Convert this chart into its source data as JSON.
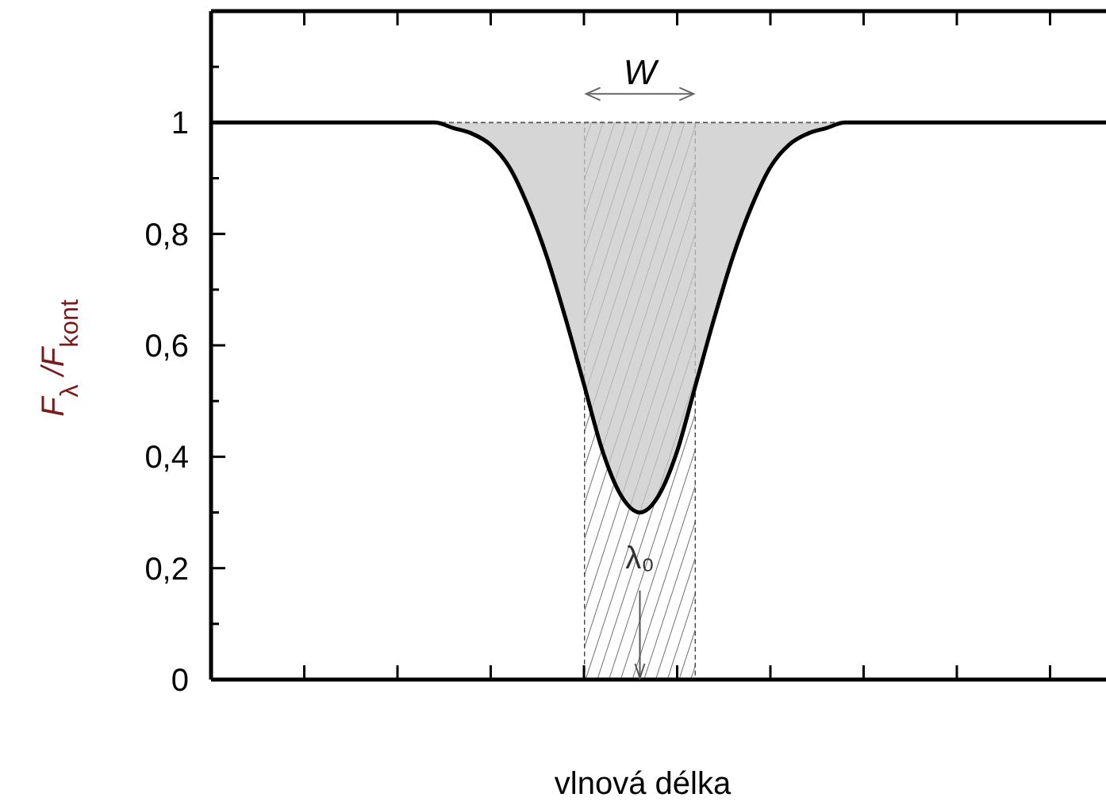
{
  "chart_data": {
    "type": "line",
    "xlabel": "vlnová délka",
    "ylabel": "F$_{λ}$ /F$_{kont}$",
    "categories": [
      null,
      null,
      null,
      null,
      null,
      null,
      null,
      null,
      null,
      null,
      null,
      null,
      null,
      null,
      null,
      null,
      null,
      null,
      null,
      null,
      null,
      null,
      null,
      null,
      null,
      null,
      null,
      null,
      null,
      null,
      null,
      null,
      null,
      null,
      null,
      null,
      null,
      null,
      null,
      null,
      null,
      null,
      null,
      null,
      null,
      null,
      null,
      null,
      null
    ],
    "series": [
      {
        "color": "#000000",
        "values": [
          1,
          1,
          1,
          1,
          1,
          1,
          1,
          1,
          1,
          1,
          1,
          1,
          1,
          0.99,
          0.98,
          0.96,
          0.92,
          0.85,
          0.76,
          0.65,
          0.53,
          0.41,
          0.33,
          0.3,
          0.33,
          0.41,
          0.53,
          0.65,
          0.76,
          0.85,
          0.92,
          0.96,
          0.98,
          0.99,
          1,
          1,
          1,
          1,
          1,
          1,
          1,
          1,
          1,
          1,
          1,
          1,
          1,
          1,
          1
        ],
        "lower": [
          1,
          1,
          1,
          1,
          1,
          1,
          1,
          1,
          1,
          1,
          1,
          1,
          1,
          0.99,
          0.98,
          0.96,
          0.92,
          0.85,
          0.76,
          0.65,
          0.53,
          0.41,
          0.33,
          0.3,
          0.33,
          0.41,
          0.53,
          0.65,
          0.76,
          0.85,
          0.92,
          0.96,
          0.98,
          0.99,
          1,
          1,
          1,
          1,
          1,
          1,
          1,
          1,
          1,
          1,
          1,
          1,
          1,
          1,
          1
        ],
        "upper": [
          1,
          1,
          1,
          1,
          1,
          1,
          1,
          1,
          1,
          1,
          1,
          1,
          1,
          1,
          1,
          1,
          1,
          1,
          1,
          1,
          1,
          1,
          1,
          1,
          1,
          1,
          1,
          1,
          1,
          1,
          1,
          1,
          1,
          1,
          1,
          1,
          1,
          1,
          1,
          1,
          1,
          1,
          1,
          1,
          1,
          1,
          1,
          1,
          1
        ]
      }
    ],
    "ylim": [
      0,
      1.2
    ],
    "yticks": [
      0,
      {
        "value": 0.1,
        "label": null
      },
      {
        "value": 0.2,
        "label": "0,2"
      },
      {
        "value": 0.3,
        "label": null
      },
      {
        "value": 0.4,
        "label": "0,4"
      },
      {
        "value": 0.5,
        "label": null
      },
      {
        "value": 0.6,
        "label": "0,6"
      },
      {
        "value": 0.7,
        "label": null
      },
      {
        "value": 0.8,
        "label": "0,8"
      },
      {
        "value": 0.9,
        "label": null
      },
      1,
      {
        "value": 1.1,
        "label": null
      }
    ],
    "tick_labels": "y",
    "ref_lines": [
      {
        "axis": "y",
        "value": 1,
        "line_style": "dashed",
        "color": "#555555"
      }
    ],
    "annotations": [
      "W",
      "λ₀"
    ]
  }
}
